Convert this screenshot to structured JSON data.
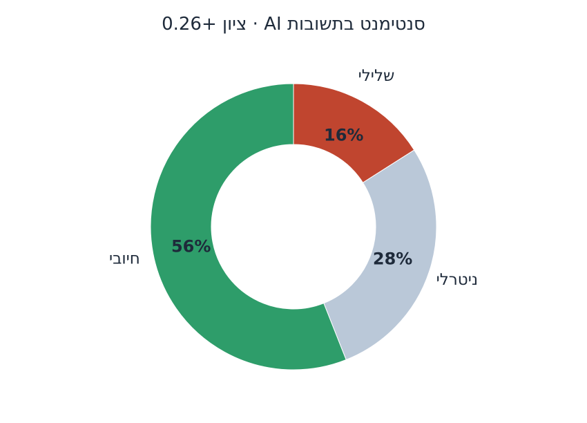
{
  "chart_data": {
    "type": "pie",
    "title": "סנטימנט בתשובות AI  ·  ציון +0.26",
    "donut": true,
    "slices": [
      {
        "label": "שלילי",
        "value": 16,
        "value_label": "16%",
        "color": "#c0452f"
      },
      {
        "label": "ניטרלי",
        "value": 28,
        "value_label": "28%",
        "color": "#bac8d8"
      },
      {
        "label": "חיובי",
        "value": 56,
        "value_label": "56%",
        "color": "#2e9d6a"
      }
    ],
    "start": "top",
    "direction": "clockwise"
  }
}
